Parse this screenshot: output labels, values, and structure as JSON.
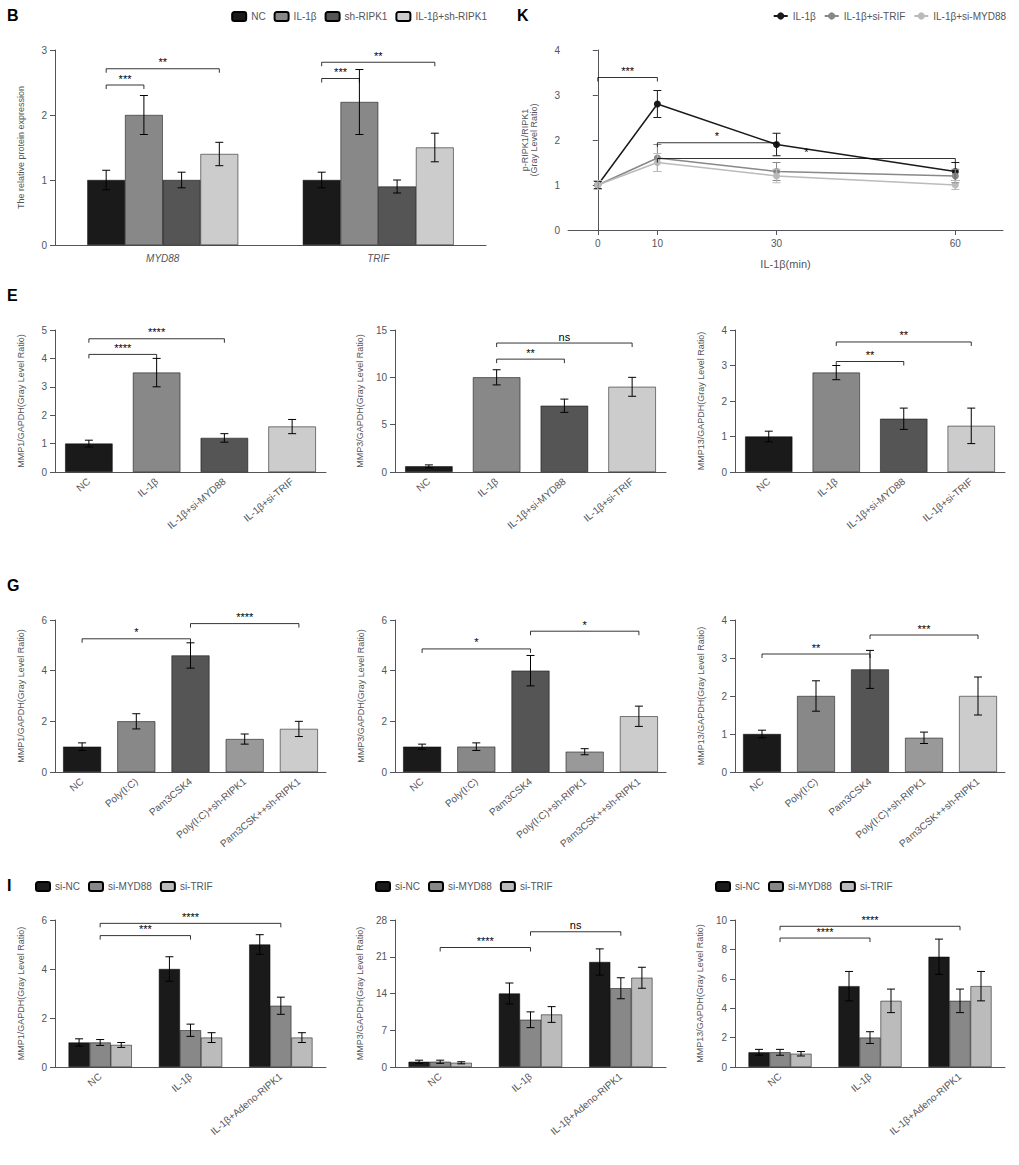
{
  "chart_data": [
    {
      "type": "bar",
      "title": "B",
      "categories": [
        "MYD88",
        "TRIF"
      ],
      "series": [
        {
          "name": "NC",
          "color": "#1a1a1a",
          "values": [
            1.0,
            1.0
          ],
          "errors": [
            0.15,
            0.12
          ]
        },
        {
          "name": "IL-1β",
          "color": "#888888",
          "values": [
            2.0,
            2.2
          ],
          "errors": [
            0.3,
            0.5
          ]
        },
        {
          "name": "sh-RIPK1",
          "color": "#555555",
          "values": [
            1.0,
            0.9
          ],
          "errors": [
            0.12,
            0.1
          ]
        },
        {
          "name": "IL-1β+sh-RIPK1",
          "color": "#cccccc",
          "values": [
            1.4,
            1.5
          ],
          "errors": [
            0.18,
            0.22
          ]
        }
      ],
      "ylabel": "The relative protein expression",
      "ylim": [
        0,
        3
      ],
      "yticks": [
        0,
        1,
        2,
        3
      ],
      "grid": false,
      "legend": "upper right",
      "annotations": [
        {
          "category": "MYD88",
          "from": "NC",
          "to": "IL-1β",
          "y": 2.4,
          "text": "***"
        },
        {
          "category": "MYD88",
          "from": "NC",
          "to": "IL-1β+sh-RIPK1",
          "y": 2.65,
          "text": "**"
        },
        {
          "category": "TRIF",
          "from": "NC",
          "to": "IL-1β",
          "y": 2.5,
          "text": "***"
        },
        {
          "category": "TRIF",
          "from": "NC",
          "to": "IL-1β+sh-RIPK1",
          "y": 2.75,
          "text": "**"
        }
      ]
    },
    {
      "type": "bar",
      "title": "E",
      "categories": [
        "NC",
        "IL-1β",
        "IL-1β+si-MYD88",
        "IL-1β+si-TRIF"
      ],
      "values": [
        1.0,
        3.5,
        1.2,
        1.6
      ],
      "errors": [
        0.12,
        0.5,
        0.15,
        0.25
      ],
      "colors": [
        "#1a1a1a",
        "#888888",
        "#555555",
        "#cccccc"
      ],
      "ylabel": "MMP1/GAPDH(Gray Level Ratio)",
      "ylim": [
        0,
        5
      ],
      "yticks": [
        0,
        1,
        2,
        3,
        4,
        5
      ],
      "grid": false,
      "annotations": [
        {
          "from": "NC",
          "to": "IL-1β",
          "y": 4.0,
          "text": "****"
        },
        {
          "from": "NC",
          "to": "IL-1β+si-MYD88",
          "y": 4.55,
          "text": "****"
        }
      ]
    },
    {
      "type": "bar",
      "categories": [
        "NC",
        "IL-1β",
        "IL-1β+si-MYD88",
        "IL-1β+si-TRIF"
      ],
      "values": [
        0.6,
        10.0,
        7.0,
        9.0
      ],
      "errors": [
        0.15,
        0.8,
        0.7,
        1.0
      ],
      "colors": [
        "#1a1a1a",
        "#888888",
        "#555555",
        "#cccccc"
      ],
      "ylabel": "MMP3/GAPDH(Gray Level Ratio)",
      "ylim": [
        0,
        15
      ],
      "yticks": [
        0,
        5,
        10,
        15
      ],
      "grid": false,
      "annotations": [
        {
          "from": "IL-1β",
          "to": "IL-1β+si-MYD88",
          "y": 11.5,
          "text": "**"
        },
        {
          "from": "IL-1β",
          "to": "IL-1β+si-TRIF",
          "y": 13.2,
          "text": "ns"
        }
      ]
    },
    {
      "type": "bar",
      "categories": [
        "NC",
        "IL-1β",
        "IL-1β+si-MYD88",
        "IL-1β+si-TRIF"
      ],
      "values": [
        1.0,
        2.8,
        1.5,
        1.3
      ],
      "errors": [
        0.15,
        0.2,
        0.3,
        0.5
      ],
      "colors": [
        "#1a1a1a",
        "#888888",
        "#555555",
        "#cccccc"
      ],
      "ylabel": "MMP13/GAPDH(Gray Level Ratio)",
      "ylim": [
        0,
        4
      ],
      "yticks": [
        0,
        1,
        2,
        3,
        4
      ],
      "grid": false,
      "annotations": [
        {
          "from": "IL-1β",
          "to": "IL-1β+si-MYD88",
          "y": 3.0,
          "text": "**"
        },
        {
          "from": "IL-1β",
          "to": "IL-1β+si-TRIF",
          "y": 3.55,
          "text": "**"
        }
      ]
    },
    {
      "type": "bar",
      "title": "G",
      "categories": [
        "NC",
        "Poly(I:C)",
        "Pam3CSK4",
        "Poly(I:C)+sh-RIPK1",
        "Pam3CSK++sh-RIPK1"
      ],
      "values": [
        1.0,
        2.0,
        4.6,
        1.3,
        1.7
      ],
      "errors": [
        0.15,
        0.3,
        0.5,
        0.2,
        0.3
      ],
      "colors": [
        "#1a1a1a",
        "#888888",
        "#555555",
        "#999999",
        "#cccccc"
      ],
      "ylabel": "MMP1/GAPDH(Gray Level Ratio)",
      "ylim": [
        0,
        6
      ],
      "yticks": [
        0,
        2,
        4,
        6
      ],
      "grid": false,
      "annotations": [
        {
          "from": "NC",
          "to": "Pam3CSK4",
          "y": 5.1,
          "text": "*"
        },
        {
          "from": "Pam3CSK4",
          "to": "Pam3CSK++sh-RIPK1",
          "y": 5.7,
          "text": "****"
        }
      ]
    },
    {
      "type": "bar",
      "categories": [
        "NC",
        "Poly(I:C)",
        "Pam3CSK4",
        "Poly(I:C)+sh-RIPK1",
        "Pam3CSK++sh-RIPK1"
      ],
      "values": [
        1.0,
        1.0,
        4.0,
        0.8,
        2.2
      ],
      "errors": [
        0.1,
        0.15,
        0.6,
        0.12,
        0.4
      ],
      "colors": [
        "#1a1a1a",
        "#888888",
        "#555555",
        "#999999",
        "#cccccc"
      ],
      "ylabel": "MMP3/GAPDH(Gray Level Ratio)",
      "ylim": [
        0,
        6
      ],
      "yticks": [
        0,
        2,
        4,
        6
      ],
      "grid": false,
      "annotations": [
        {
          "from": "NC",
          "to": "Pam3CSK4",
          "y": 4.7,
          "text": "*"
        },
        {
          "from": "Pam3CSK4",
          "to": "Pam3CSK++sh-RIPK1",
          "y": 5.4,
          "text": "*"
        }
      ]
    },
    {
      "type": "bar",
      "categories": [
        "NC",
        "Poly(I:C)",
        "Pam3CSK4",
        "Poly(I:C)+sh-RIPK1",
        "Pam3CSK++sh-RIPK1"
      ],
      "values": [
        1.0,
        2.0,
        2.7,
        0.9,
        2.0
      ],
      "errors": [
        0.1,
        0.4,
        0.5,
        0.15,
        0.5
      ],
      "colors": [
        "#1a1a1a",
        "#888888",
        "#555555",
        "#999999",
        "#cccccc"
      ],
      "ylabel": "MMP13/GAPDH(Gray Level Ratio)",
      "ylim": [
        0,
        4
      ],
      "yticks": [
        0,
        1,
        2,
        3,
        4
      ],
      "grid": false,
      "annotations": [
        {
          "from": "NC",
          "to": "Pam3CSK4",
          "y": 3.0,
          "text": "**"
        },
        {
          "from": "Pam3CSK4",
          "to": "Pam3CSK++sh-RIPK1",
          "y": 3.5,
          "text": "***"
        }
      ]
    },
    {
      "type": "bar",
      "title": "I",
      "categories": [
        "NC",
        "IL-1β",
        "IL-1β+Adeno-RIPK1"
      ],
      "series": [
        {
          "name": "si-NC",
          "color": "#1a1a1a",
          "values": [
            1.0,
            4.0,
            5.0
          ],
          "errors": [
            0.15,
            0.5,
            0.4
          ]
        },
        {
          "name": "si-MYD88",
          "color": "#888888",
          "values": [
            1.0,
            1.5,
            2.5
          ],
          "errors": [
            0.12,
            0.25,
            0.35
          ]
        },
        {
          "name": "si-TRIF",
          "color": "#bbbbbb",
          "values": [
            0.9,
            1.2,
            1.2
          ],
          "errors": [
            0.1,
            0.2,
            0.2
          ]
        }
      ],
      "ylabel": "MMP1/GAPDH(Gray Level Ratio)",
      "ylim": [
        0,
        6
      ],
      "yticks": [
        0,
        2,
        4,
        6
      ],
      "grid": false,
      "legend": "upper left",
      "annotations": [
        {
          "from": "NC",
          "to": "IL-1β",
          "y": 5.2,
          "text": "***"
        },
        {
          "from": "NC",
          "to": "IL-1β+Adeno-RIPK1",
          "y": 5.7,
          "text": "****"
        }
      ]
    },
    {
      "type": "bar",
      "categories": [
        "NC",
        "IL-1β",
        "IL-1β+Adeno-RIPK1"
      ],
      "series": [
        {
          "name": "si-NC",
          "color": "#1a1a1a",
          "values": [
            1.0,
            14.0,
            20.0
          ],
          "errors": [
            0.3,
            2.0,
            2.5
          ]
        },
        {
          "name": "si-MYD88",
          "color": "#888888",
          "values": [
            1.0,
            9.0,
            15.0
          ],
          "errors": [
            0.3,
            1.5,
            2.0
          ]
        },
        {
          "name": "si-TRIF",
          "color": "#bbbbbb",
          "values": [
            0.8,
            10.0,
            17.0
          ],
          "errors": [
            0.2,
            1.5,
            2.0
          ]
        }
      ],
      "ylabel": "MMP3/GAPDH(Gray Level Ratio)",
      "ylim": [
        0,
        28
      ],
      "yticks": [
        0,
        7,
        14,
        21,
        28
      ],
      "grid": false,
      "legend": "upper left",
      "annotations": [
        {
          "from": "NC",
          "to": "IL-1β",
          "y": 22.0,
          "text": "****"
        },
        {
          "from": "IL-1β",
          "to": "IL-1β+Adeno-RIPK1",
          "y": 25.0,
          "text": "ns"
        }
      ]
    },
    {
      "type": "bar",
      "categories": [
        "NC",
        "IL-1β",
        "IL-1β+Adeno-RIPK1"
      ],
      "series": [
        {
          "name": "si-NC",
          "color": "#1a1a1a",
          "values": [
            1.0,
            5.5,
            7.5
          ],
          "errors": [
            0.2,
            1.0,
            1.2
          ]
        },
        {
          "name": "si-MYD88",
          "color": "#888888",
          "values": [
            1.0,
            2.0,
            4.5
          ],
          "errors": [
            0.2,
            0.4,
            0.8
          ]
        },
        {
          "name": "si-TRIF",
          "color": "#bbbbbb",
          "values": [
            0.9,
            4.5,
            5.5
          ],
          "errors": [
            0.15,
            0.8,
            1.0
          ]
        }
      ],
      "ylabel": "MMP13/GAPDH(Gray Level Ratio)",
      "ylim": [
        0,
        10
      ],
      "yticks": [
        0,
        2,
        4,
        6,
        8,
        10
      ],
      "grid": false,
      "legend": "upper left",
      "annotations": [
        {
          "from": "NC",
          "to": "IL-1β",
          "y": 8.5,
          "text": "****"
        },
        {
          "from": "NC",
          "to": "IL-1β+Adeno-RIPK1",
          "y": 9.3,
          "text": "****"
        }
      ]
    },
    {
      "type": "line",
      "title": "K",
      "x": [
        0,
        10,
        30,
        60
      ],
      "series": [
        {
          "name": "IL-1β",
          "color": "#1a1a1a",
          "marker": "circle",
          "values": [
            1.0,
            2.8,
            1.9,
            1.3
          ],
          "errors": [
            0.08,
            0.3,
            0.25,
            0.2
          ]
        },
        {
          "name": "IL-1β+si-TRIF",
          "color": "#888888",
          "marker": "circle",
          "values": [
            1.0,
            1.6,
            1.3,
            1.2
          ],
          "errors": [
            0.1,
            0.3,
            0.2,
            0.15
          ]
        },
        {
          "name": "IL-1β+si-MYD88",
          "color": "#bbbbbb",
          "marker": "circle",
          "values": [
            1.0,
            1.5,
            1.2,
            1.0
          ],
          "errors": [
            0.1,
            0.2,
            0.15,
            0.1
          ]
        }
      ],
      "xlabel": "IL-1β(min)",
      "ylabel": "p-RIPK1/RIPK1\n(Gray Level Ratio)",
      "xlim": [
        -5,
        68
      ],
      "xticks": [
        0,
        10,
        30,
        60
      ],
      "ylim": [
        0,
        4
      ],
      "yticks": [
        0,
        1,
        2,
        3,
        4
      ],
      "grid": false,
      "legend": "upper right",
      "annotations": [
        {
          "from": 0,
          "to": 10,
          "y": 3.3,
          "text": "***"
        },
        {
          "from": 10,
          "to": 30,
          "y": 1.85,
          "text": "*"
        },
        {
          "from": 10,
          "to": 60,
          "y": 1.5,
          "text": "*"
        }
      ]
    }
  ]
}
